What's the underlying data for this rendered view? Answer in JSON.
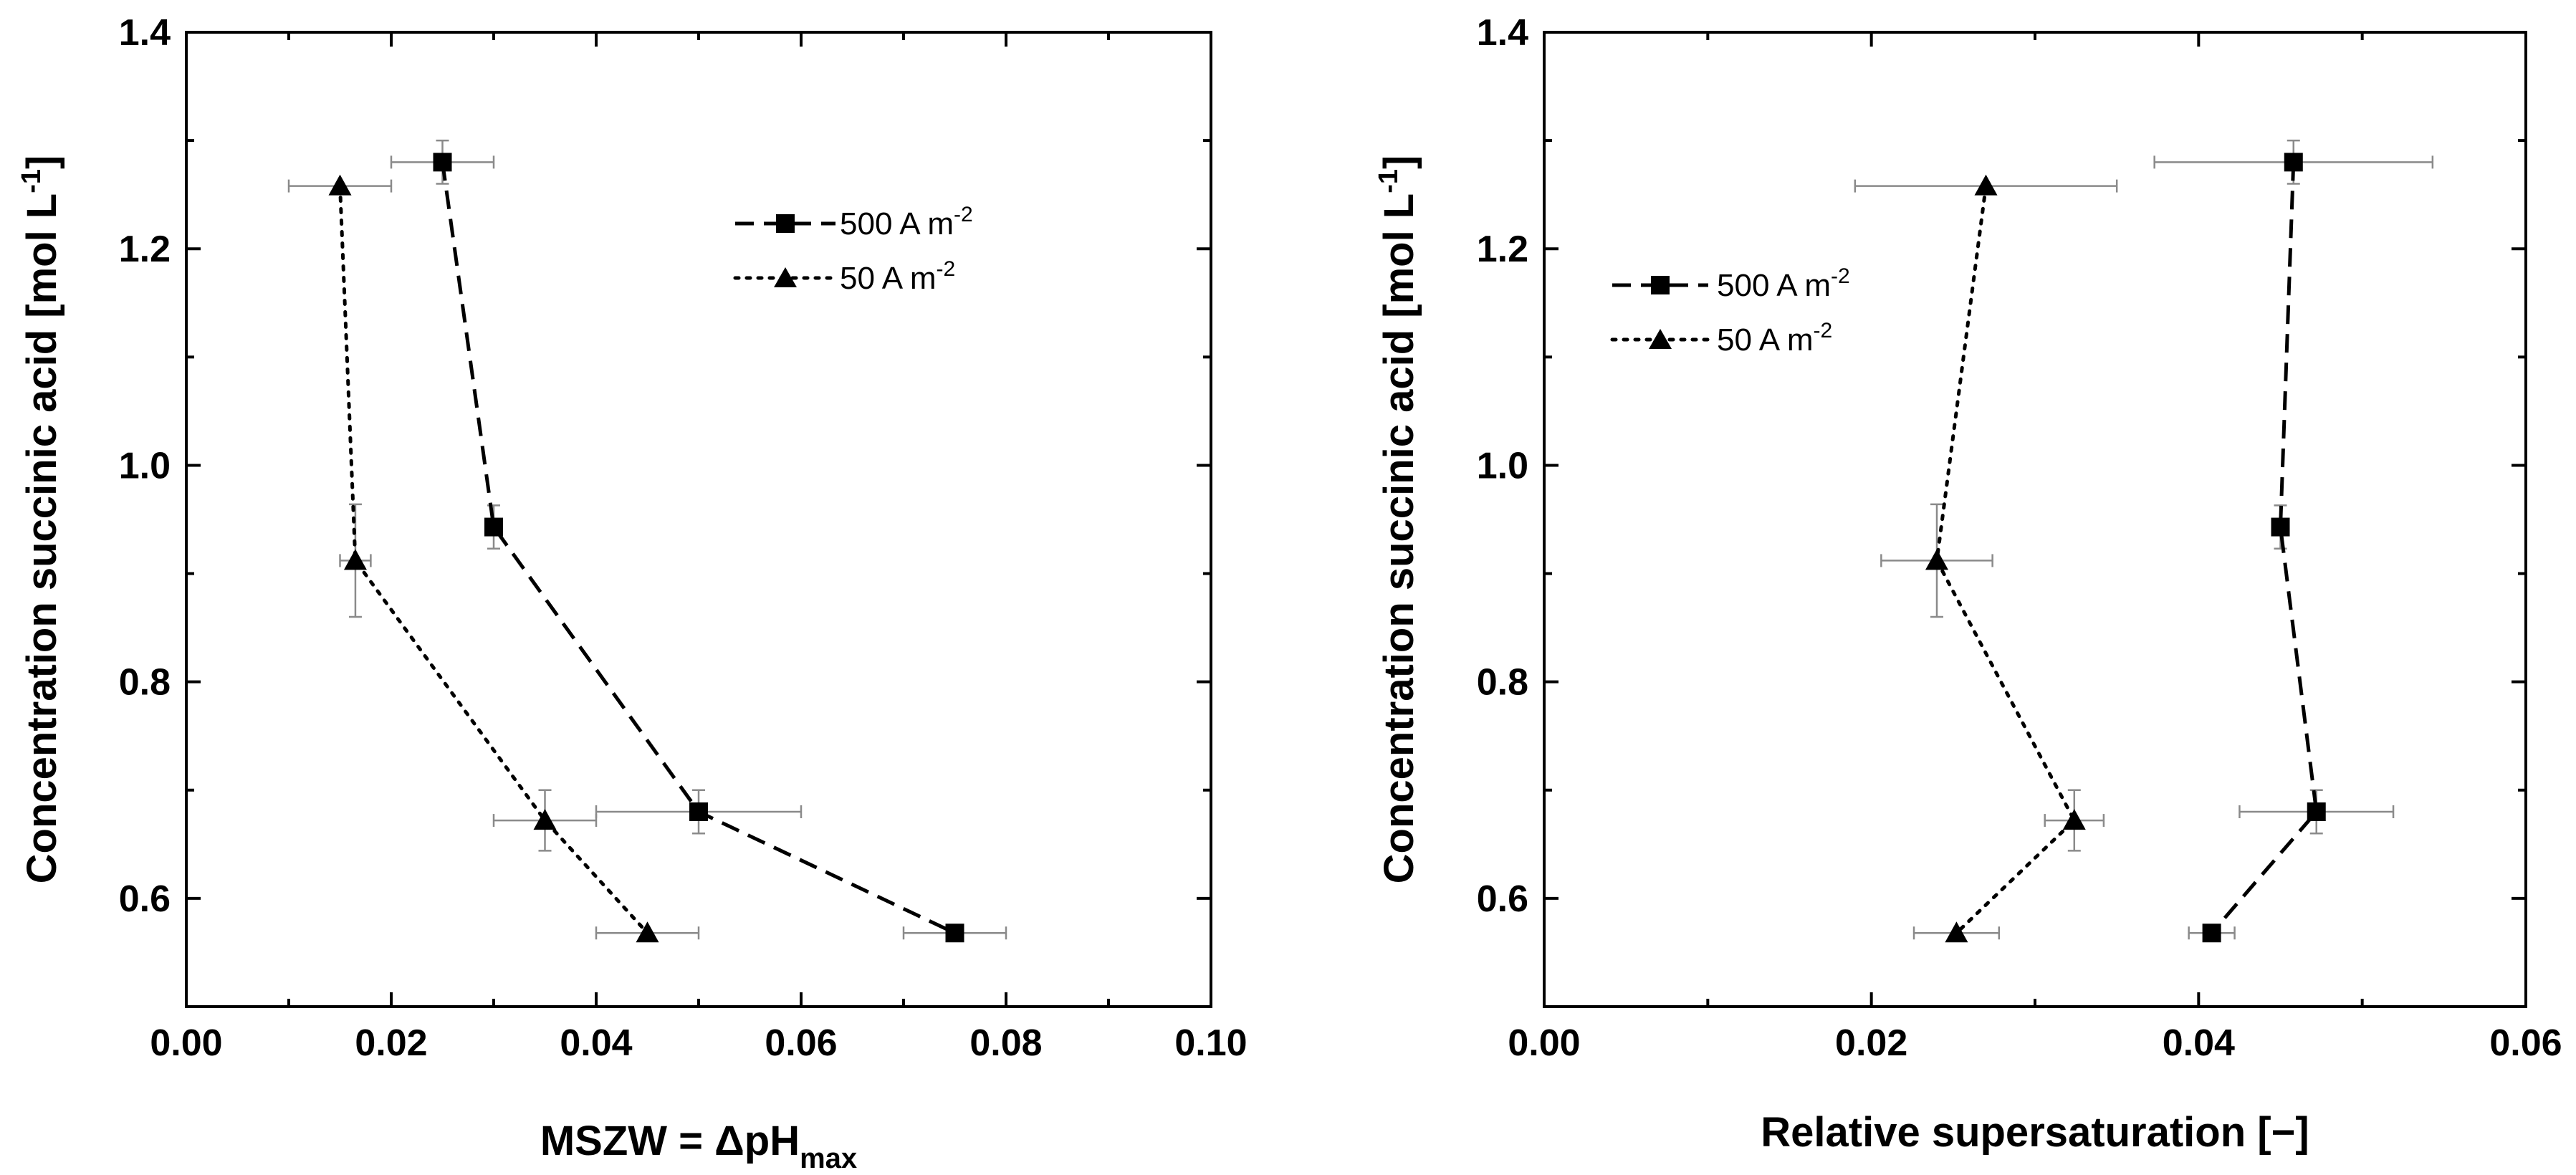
{
  "chart_data": [
    {
      "type": "scatter",
      "title": "",
      "xlabel": "MSZW = ",
      "xlabel_delta": "ΔpH",
      "xlabel_sub": "max",
      "ylabel": "Concentration succinic acid [mol L",
      "ylabel_sup": "-1",
      "ylabel_end": "]",
      "xlim": [
        0,
        0.1
      ],
      "ylim": [
        0.5,
        1.4
      ],
      "xticks": [
        0.0,
        0.02,
        0.04,
        0.06,
        0.08,
        0.1
      ],
      "xtick_labels": [
        "0.00",
        "0.02",
        "0.04",
        "0.06",
        "0.08",
        "0.10"
      ],
      "yticks": [
        0.6,
        0.8,
        1.0,
        1.2,
        1.4
      ],
      "ytick_labels": [
        "0.6",
        "0.8",
        "1.0",
        "1.2",
        "1.4"
      ],
      "legend_position": "upper-right",
      "series": [
        {
          "name": "500 A m",
          "name_sup": "-2",
          "marker": "square",
          "line": "dashed",
          "points": [
            {
              "x": 0.025,
              "y": 1.28,
              "xerr": 0.005,
              "yerr": 0.02
            },
            {
              "x": 0.03,
              "y": 0.943,
              "xerr": 0.0,
              "yerr": 0.02
            },
            {
              "x": 0.05,
              "y": 0.68,
              "xerr": 0.01,
              "yerr": 0.02
            },
            {
              "x": 0.075,
              "y": 0.568,
              "xerr": 0.005,
              "yerr": 0.0
            }
          ]
        },
        {
          "name": "50 A m",
          "name_sup": "-2",
          "marker": "triangle",
          "line": "dotted",
          "points": [
            {
              "x": 0.015,
              "y": 1.258,
              "xerr": 0.005,
              "yerr": 0.0
            },
            {
              "x": 0.0165,
              "y": 0.912,
              "xerr": 0.0015,
              "yerr": 0.052
            },
            {
              "x": 0.035,
              "y": 0.672,
              "xerr": 0.005,
              "yerr": 0.028
            },
            {
              "x": 0.045,
              "y": 0.568,
              "xerr": 0.005,
              "yerr": 0.0
            }
          ]
        }
      ]
    },
    {
      "type": "scatter",
      "title": "",
      "xlabel": "Relative supersaturation [−]",
      "ylabel": "Concentration succinic acid [mol L",
      "ylabel_sup": "-1",
      "ylabel_end": "]",
      "xlim": [
        0,
        0.06
      ],
      "ylim": [
        0.5,
        1.4
      ],
      "xticks": [
        0.0,
        0.02,
        0.04,
        0.06
      ],
      "xtick_labels": [
        "0.00",
        "0.02",
        "0.04",
        "0.06"
      ],
      "yticks": [
        0.6,
        0.8,
        1.0,
        1.2,
        1.4
      ],
      "ytick_labels": [
        "0.6",
        "0.8",
        "1.0",
        "1.2",
        "1.4"
      ],
      "legend_position": "upper-left",
      "series": [
        {
          "name": "500 A m",
          "name_sup": "-2",
          "marker": "square",
          "line": "dashed",
          "points": [
            {
              "x": 0.0458,
              "y": 1.28,
              "xerr": 0.0085,
              "yerr": 0.02
            },
            {
              "x": 0.045,
              "y": 0.943,
              "xerr": 0.0005,
              "yerr": 0.02
            },
            {
              "x": 0.0472,
              "y": 0.68,
              "xerr": 0.0047,
              "yerr": 0.02
            },
            {
              "x": 0.0408,
              "y": 0.568,
              "xerr": 0.0014,
              "yerr": 0.0
            }
          ]
        },
        {
          "name": "50 A m",
          "name_sup": "-2",
          "marker": "triangle",
          "line": "dotted",
          "points": [
            {
              "x": 0.027,
              "y": 1.258,
              "xerr": 0.008,
              "yerr": 0.0
            },
            {
              "x": 0.024,
              "y": 0.912,
              "xerr": 0.0034,
              "yerr": 0.052
            },
            {
              "x": 0.0324,
              "y": 0.672,
              "xerr": 0.0018,
              "yerr": 0.028
            },
            {
              "x": 0.0252,
              "y": 0.568,
              "xerr": 0.0026,
              "yerr": 0.0
            }
          ]
        }
      ]
    }
  ]
}
